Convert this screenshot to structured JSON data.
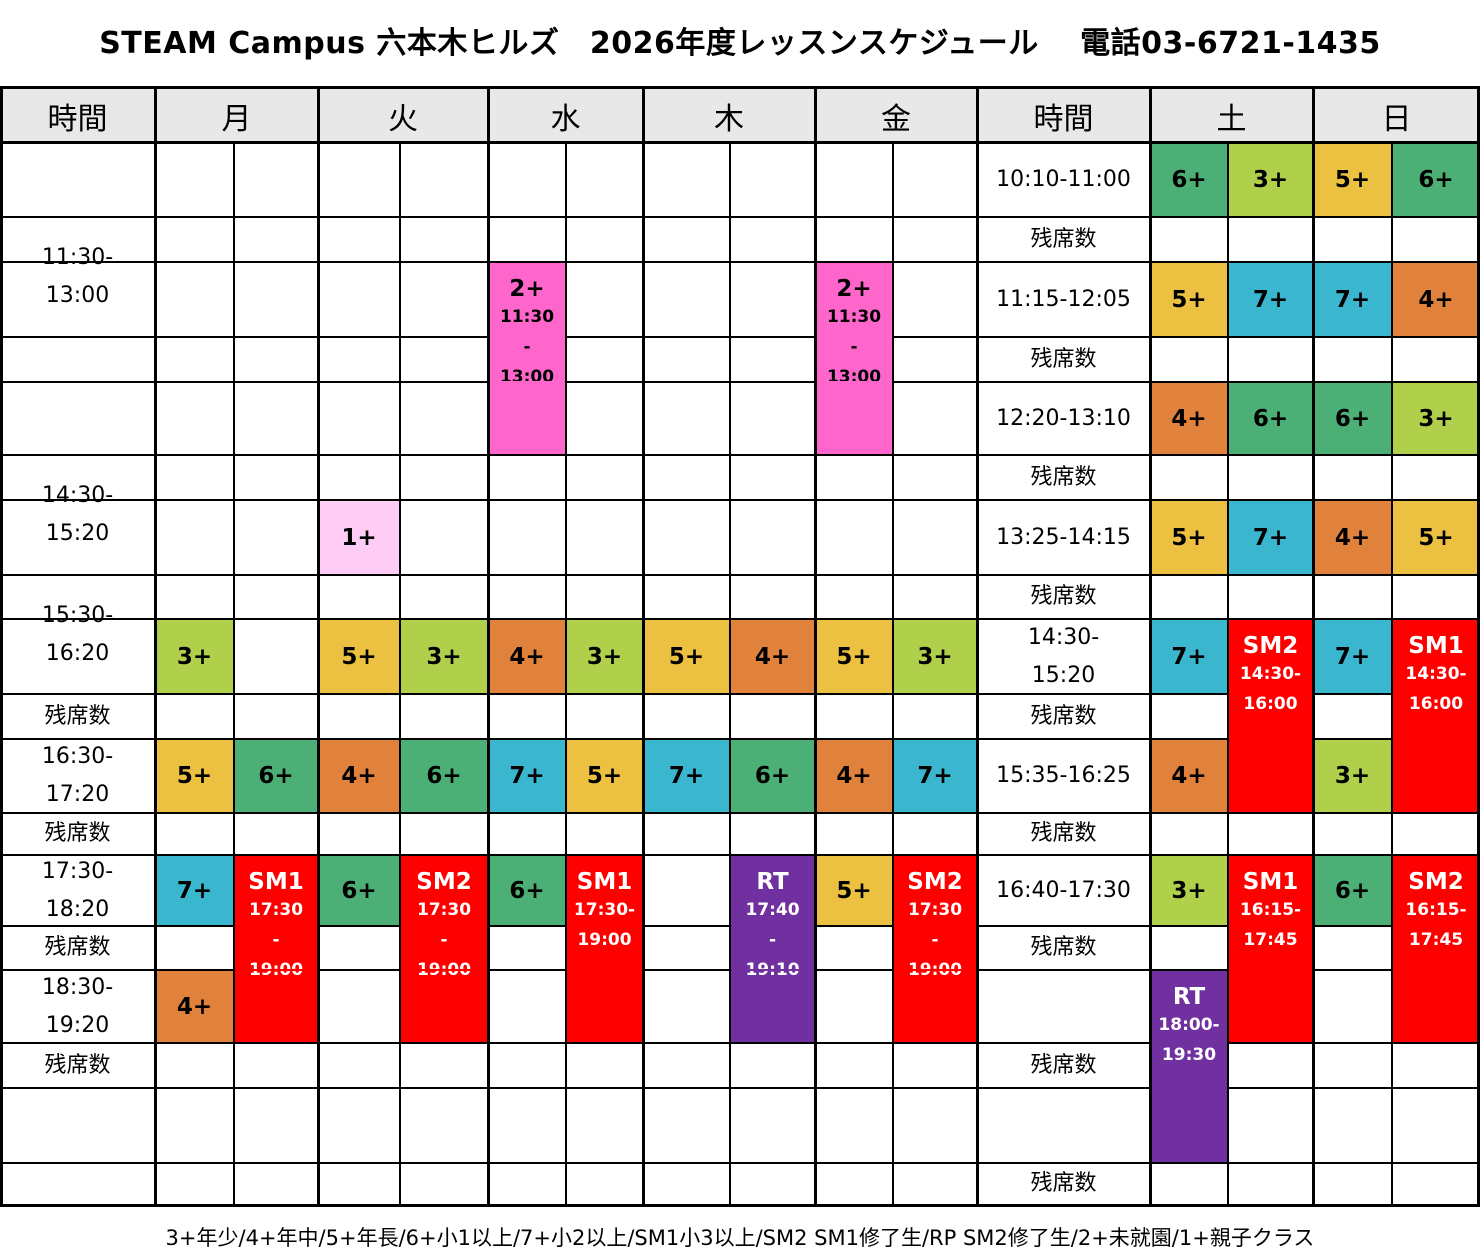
{
  "title": "STEAM Campus 六本木ヒルズ　2026年度レッスンスケジュール　 電話03-6721-1435",
  "footer": "3+年少/4+年中/5+年長/6+小1以上/7+小2以上/SM1小3以上/SM2 SM1修了生/RP SM2修了生/2+未就園/1+親子クラス",
  "headers": [
    "時間",
    "月",
    "火",
    "水",
    "木",
    "金",
    "時間",
    "土",
    "日"
  ],
  "colors": {
    "header_bg": "#e8e8e8",
    "1+": "#ffccf5",
    "2+": "#ff66cc",
    "3+": "#b0cf4a",
    "4+": "#e0823c",
    "5+": "#ecc142",
    "6+": "#4caf75",
    "7+": "#3ab6cf",
    "SM1": "#ff0000",
    "SM2": "#ff0000",
    "RT": "#70309f"
  },
  "weekday_time_labels": [
    "11:30-\n13:00",
    "14:30-\n15:20",
    "15:30-\n16:20",
    "残席数",
    "16:30-\n17:20",
    "残席数",
    "17:30-\n18:20",
    "残席数",
    "18:30-\n19:20",
    "残席数"
  ],
  "weekend_time_labels": [
    "10:10-11:00",
    "残席数",
    "11:15-12:05",
    "残席数",
    "12:20-13:10",
    "残席数",
    "13:25-14:15",
    "残席数",
    "14:30-\n15:20",
    "残席数",
    "15:35-16:25",
    "残席数",
    "16:40-17:30",
    "残席数",
    "残席数",
    "残席数"
  ],
  "lessons": [
    {
      "day": "水",
      "label": "2+",
      "sub": "11:30\n-\n13:00",
      "color": "#ff66cc",
      "text_color": "#000000"
    },
    {
      "day": "金",
      "label": "2+",
      "sub": "11:30\n-\n13:00",
      "color": "#ff66cc",
      "text_color": "#000000"
    },
    {
      "day": "火",
      "label": "1+",
      "color": "#ffccf5",
      "text_color": "#000000"
    },
    {
      "day": "月",
      "label": "3+",
      "color": "#b0cf4a",
      "text_color": "#000000"
    },
    {
      "day": "火",
      "label": "5+",
      "color": "#ecc142",
      "text_color": "#000000"
    },
    {
      "day": "火",
      "label": "3+",
      "color": "#b0cf4a",
      "text_color": "#000000"
    },
    {
      "day": "水",
      "label": "4+",
      "color": "#e0823c",
      "text_color": "#000000"
    },
    {
      "day": "水",
      "label": "3+",
      "color": "#b0cf4a",
      "text_color": "#000000"
    },
    {
      "day": "木",
      "label": "5+",
      "color": "#ecc142",
      "text_color": "#000000"
    },
    {
      "day": "木",
      "label": "4+",
      "color": "#e0823c",
      "text_color": "#000000"
    },
    {
      "day": "金",
      "label": "5+",
      "color": "#ecc142",
      "text_color": "#000000"
    },
    {
      "day": "金",
      "label": "3+",
      "color": "#b0cf4a",
      "text_color": "#000000"
    },
    {
      "day": "月",
      "label": "5+",
      "color": "#ecc142",
      "text_color": "#000000"
    },
    {
      "day": "月",
      "label": "6+",
      "color": "#4caf75",
      "text_color": "#000000"
    },
    {
      "day": "火",
      "label": "4+",
      "color": "#e0823c",
      "text_color": "#000000"
    },
    {
      "day": "火",
      "label": "6+",
      "color": "#4caf75",
      "text_color": "#000000"
    },
    {
      "day": "水",
      "label": "7+",
      "color": "#3ab6cf",
      "text_color": "#000000"
    },
    {
      "day": "水",
      "label": "5+",
      "color": "#ecc142",
      "text_color": "#000000"
    },
    {
      "day": "木",
      "label": "7+",
      "color": "#3ab6cf",
      "text_color": "#000000"
    },
    {
      "day": "木",
      "label": "6+",
      "color": "#4caf75",
      "text_color": "#000000"
    },
    {
      "day": "金",
      "label": "4+",
      "color": "#e0823c",
      "text_color": "#000000"
    },
    {
      "day": "金",
      "label": "7+",
      "color": "#3ab6cf",
      "text_color": "#000000"
    },
    {
      "day": "月",
      "label": "7+",
      "color": "#3ab6cf",
      "text_color": "#000000"
    },
    {
      "day": "月",
      "label": "SM1",
      "sub": "17:30\n-\n19:00",
      "color": "#ff0000",
      "text_color": "#ffffff"
    },
    {
      "day": "火",
      "label": "6+",
      "color": "#4caf75",
      "text_color": "#000000"
    },
    {
      "day": "火",
      "label": "SM2",
      "sub": "17:30\n-\n19:00",
      "color": "#ff0000",
      "text_color": "#ffffff"
    },
    {
      "day": "水",
      "label": "6+",
      "color": "#4caf75",
      "text_color": "#000000"
    },
    {
      "day": "水",
      "label": "SM1",
      "sub": "17:30-\n19:00",
      "color": "#ff0000",
      "text_color": "#ffffff"
    },
    {
      "day": "木",
      "label": "RT",
      "sub": "17:40\n-\n19:10",
      "color": "#70309f",
      "text_color": "#ffffff"
    },
    {
      "day": "金",
      "label": "5+",
      "color": "#ecc142",
      "text_color": "#000000"
    },
    {
      "day": "金",
      "label": "SM2",
      "sub": "17:30\n-\n19:00",
      "color": "#ff0000",
      "text_color": "#ffffff"
    },
    {
      "day": "月",
      "label": "4+",
      "color": "#e0823c",
      "text_color": "#000000"
    },
    {
      "day": "土",
      "label": "6+",
      "color": "#4caf75",
      "text_color": "#000000"
    },
    {
      "day": "土",
      "label": "3+",
      "color": "#b0cf4a",
      "text_color": "#000000"
    },
    {
      "day": "日",
      "label": "5+",
      "color": "#ecc142",
      "text_color": "#000000"
    },
    {
      "day": "日",
      "label": "6+",
      "color": "#4caf75",
      "text_color": "#000000"
    },
    {
      "day": "土",
      "label": "5+",
      "color": "#ecc142",
      "text_color": "#000000"
    },
    {
      "day": "土",
      "label": "7+",
      "color": "#3ab6cf",
      "text_color": "#000000"
    },
    {
      "day": "日",
      "label": "7+",
      "color": "#3ab6cf",
      "text_color": "#000000"
    },
    {
      "day": "日",
      "label": "4+",
      "color": "#e0823c",
      "text_color": "#000000"
    },
    {
      "day": "土",
      "label": "4+",
      "color": "#e0823c",
      "text_color": "#000000"
    },
    {
      "day": "土",
      "label": "6+",
      "color": "#4caf75",
      "text_color": "#000000"
    },
    {
      "day": "日",
      "label": "6+",
      "color": "#4caf75",
      "text_color": "#000000"
    },
    {
      "day": "日",
      "label": "3+",
      "color": "#b0cf4a",
      "text_color": "#000000"
    },
    {
      "day": "土",
      "label": "5+",
      "color": "#ecc142",
      "text_color": "#000000"
    },
    {
      "day": "土",
      "label": "7+",
      "color": "#3ab6cf",
      "text_color": "#000000"
    },
    {
      "day": "日",
      "label": "4+",
      "color": "#e0823c",
      "text_color": "#000000"
    },
    {
      "day": "日",
      "label": "5+",
      "color": "#ecc142",
      "text_color": "#000000"
    },
    {
      "day": "土",
      "label": "7+",
      "color": "#3ab6cf",
      "text_color": "#000000"
    },
    {
      "day": "土",
      "label": "SM2",
      "sub": "14:30-\n16:00",
      "color": "#ff0000",
      "text_color": "#ffffff"
    },
    {
      "day": "日",
      "label": "7+",
      "color": "#3ab6cf",
      "text_color": "#000000"
    },
    {
      "day": "日",
      "label": "SM1",
      "sub": "14:30-\n16:00",
      "color": "#ff0000",
      "text_color": "#ffffff"
    },
    {
      "day": "土",
      "label": "4+",
      "color": "#e0823c",
      "text_color": "#000000"
    },
    {
      "day": "日",
      "label": "3+",
      "color": "#b0cf4a",
      "text_color": "#000000"
    },
    {
      "day": "土",
      "label": "3+",
      "color": "#b0cf4a",
      "text_color": "#000000"
    },
    {
      "day": "土",
      "label": "SM1",
      "sub": "16:15-\n17:45",
      "color": "#ff0000",
      "text_color": "#ffffff"
    },
    {
      "day": "日",
      "label": "6+",
      "color": "#4caf75",
      "text_color": "#000000"
    },
    {
      "day": "日",
      "label": "SM2",
      "sub": "16:15-\n17:45",
      "color": "#ff0000",
      "text_color": "#ffffff"
    },
    {
      "day": "土",
      "label": "RT",
      "sub": "18:00-\n19:30",
      "color": "#70309f",
      "text_color": "#ffffff"
    }
  ]
}
